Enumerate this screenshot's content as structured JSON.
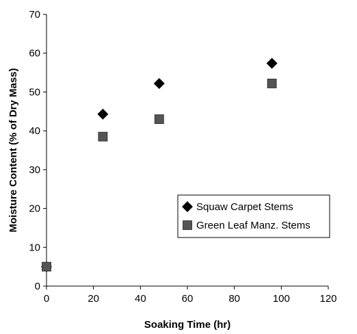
{
  "chart_data": {
    "type": "scatter",
    "title": "",
    "xlabel": "Soaking Time (hr)",
    "ylabel": "Moisture Content (% of Dry Mass)",
    "xlim": [
      0,
      120
    ],
    "ylim": [
      0,
      70
    ],
    "xticks": [
      0,
      20,
      40,
      60,
      80,
      100,
      120
    ],
    "yticks": [
      0,
      10,
      20,
      30,
      40,
      50,
      60,
      70
    ],
    "grid": false,
    "legend_position": "lower-right",
    "series": [
      {
        "name": "Squaw Carpet Stems",
        "marker": "diamond",
        "color": "#000000",
        "x": [
          0,
          24,
          48,
          96
        ],
        "y": [
          5.0,
          44.3,
          52.2,
          57.4
        ]
      },
      {
        "name": "Green Leaf Manz. Stems",
        "marker": "square",
        "color": "#555555",
        "x": [
          0,
          24,
          48,
          96
        ],
        "y": [
          5.0,
          38.5,
          43.0,
          52.2
        ]
      }
    ]
  }
}
